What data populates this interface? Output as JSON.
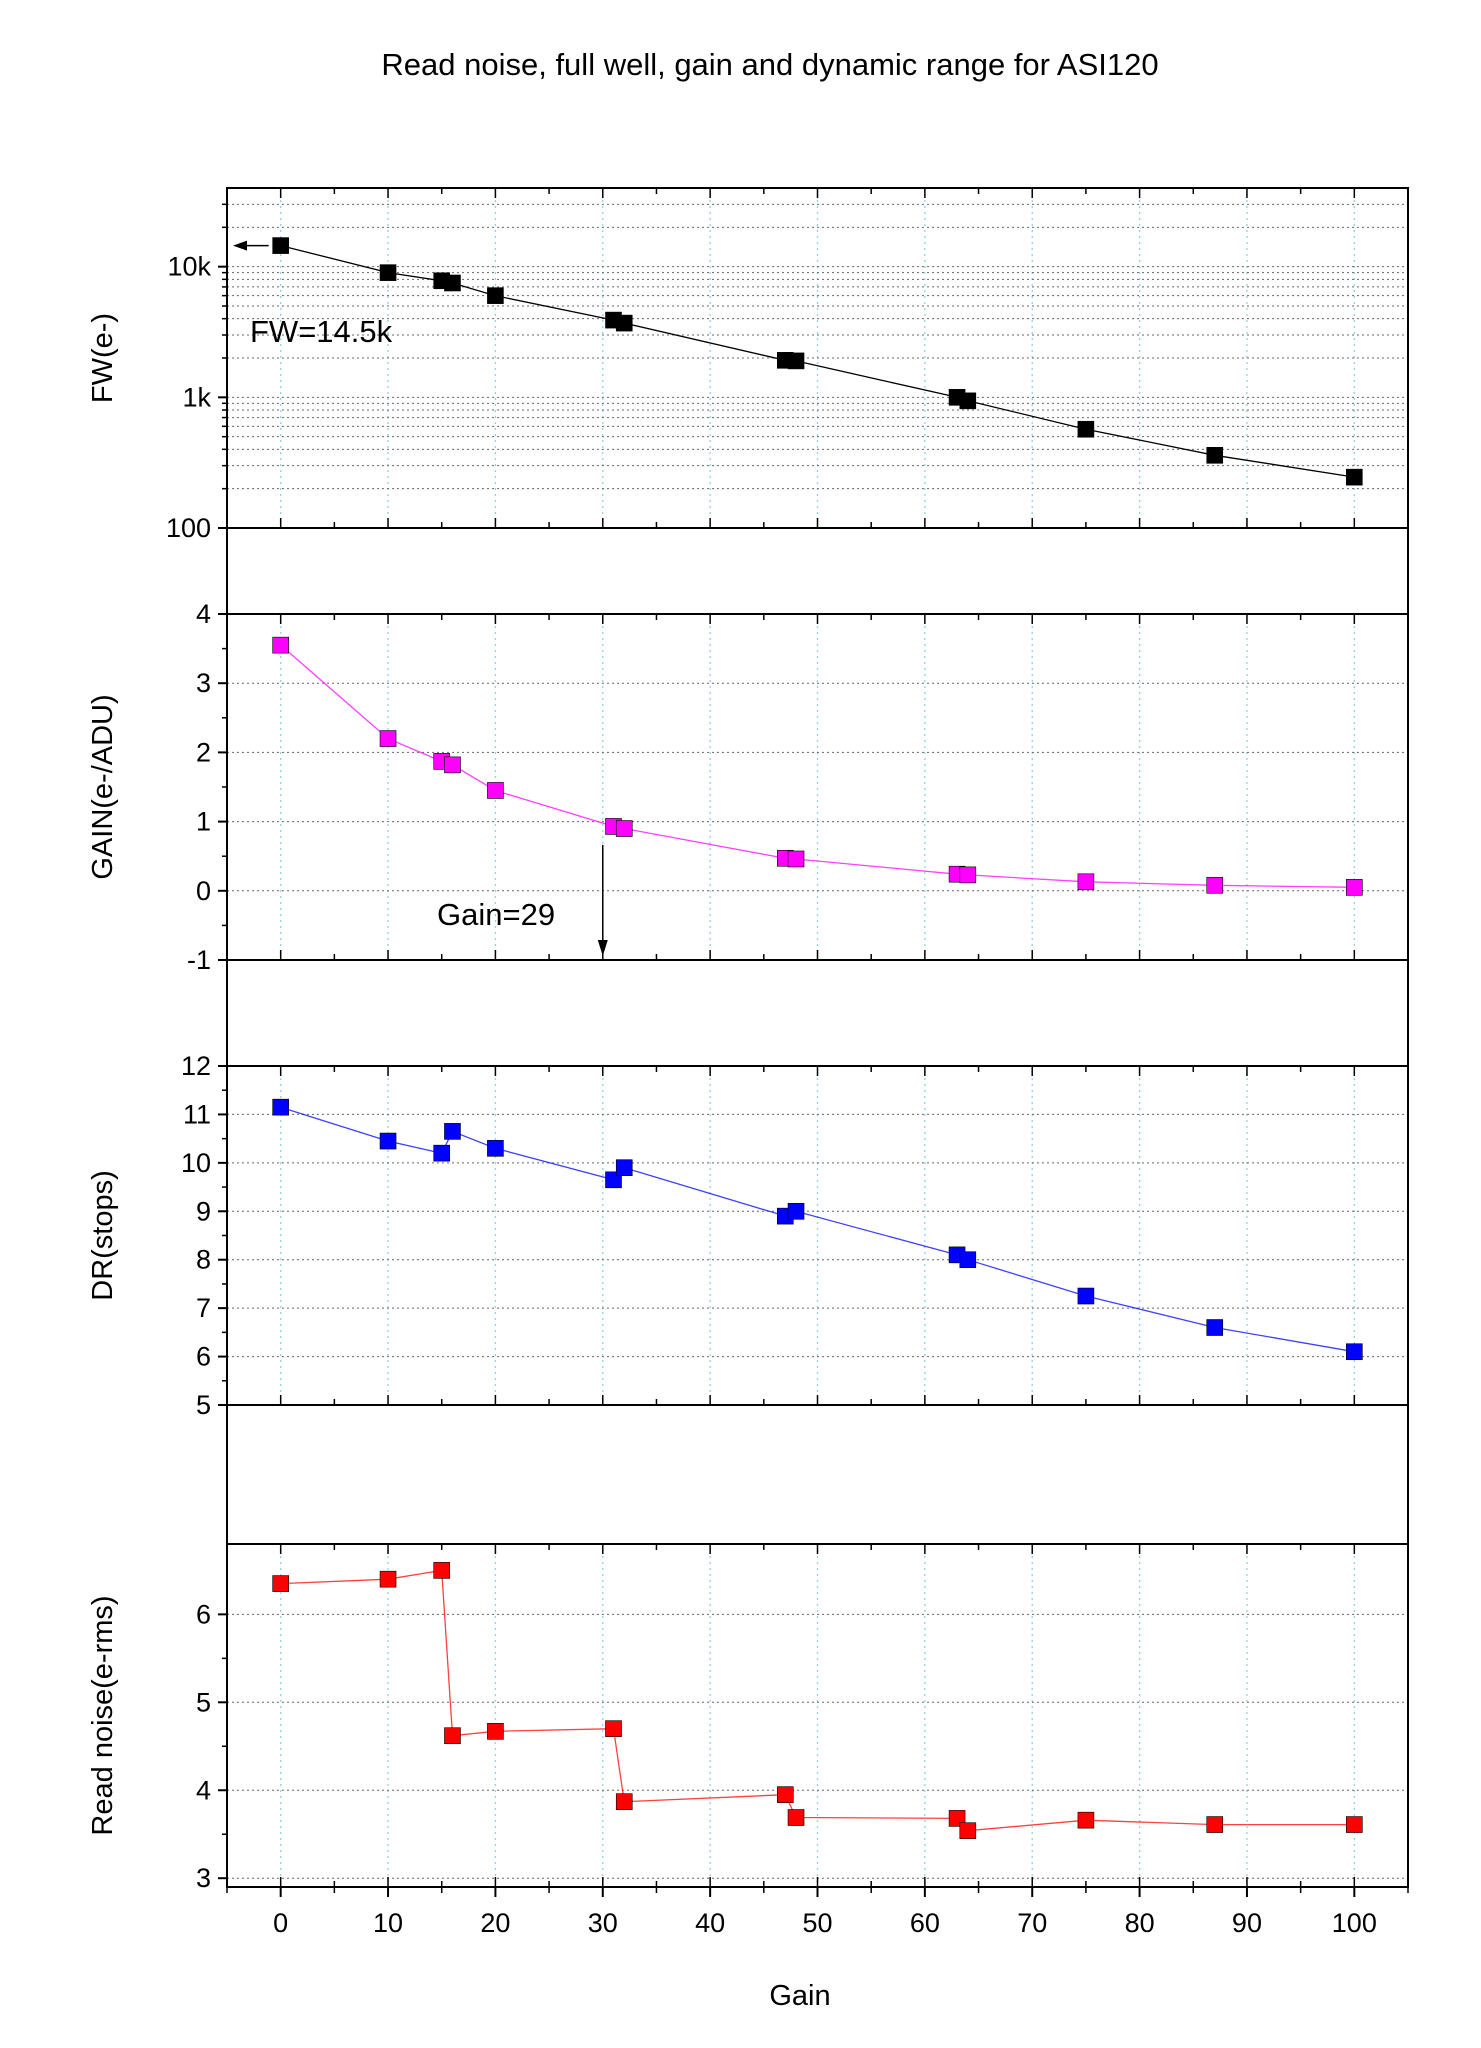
{
  "chart_data": {
    "type": "line",
    "title": "Read noise, full well, gain and dynamic range for ASI120",
    "xlabel": "Gain",
    "xlim": [
      -5,
      105
    ],
    "xticks": [
      "0",
      "10",
      "20",
      "30",
      "40",
      "50",
      "60",
      "70",
      "80",
      "90",
      "100"
    ],
    "x": [
      0,
      10,
      15,
      16,
      20,
      31,
      32,
      47,
      48,
      63,
      64,
      75,
      87,
      100
    ],
    "grid": true,
    "panels": [
      {
        "ylabel": "FW(e-)",
        "scale": "log",
        "ylim": [
          100,
          40000
        ],
        "yticks": [
          "100",
          "1k",
          "10k"
        ],
        "color": "#000000",
        "values": [
          14500,
          9000,
          7800,
          7500,
          6000,
          3900,
          3700,
          1920,
          1900,
          1000,
          940,
          570,
          360,
          245
        ],
        "annotation": "FW=14.5k"
      },
      {
        "ylabel": "GAIN(e-/ADU)",
        "scale": "linear",
        "ylim": [
          -1,
          4
        ],
        "yticks": [
          "-1",
          "0",
          "1",
          "2",
          "3",
          "4"
        ],
        "color": "#ff00ff",
        "values": [
          3.55,
          2.2,
          1.87,
          1.82,
          1.45,
          0.93,
          0.9,
          0.47,
          0.46,
          0.24,
          0.23,
          0.13,
          0.08,
          0.05
        ],
        "annotation": "Gain=29"
      },
      {
        "ylabel": "DR(stops)",
        "scale": "linear",
        "ylim": [
          5,
          12
        ],
        "yticks": [
          "5",
          "6",
          "7",
          "8",
          "9",
          "10",
          "11",
          "12"
        ],
        "color": "#0000ff",
        "values": [
          11.15,
          10.45,
          10.2,
          10.65,
          10.3,
          9.65,
          9.9,
          8.9,
          9.0,
          8.1,
          8.0,
          7.25,
          6.6,
          6.1
        ]
      },
      {
        "ylabel": "Read noise(e-rms)",
        "scale": "linear",
        "ylim": [
          2.9,
          6.8
        ],
        "yticks": [
          "3",
          "4",
          "5",
          "6"
        ],
        "color": "#ff0000",
        "values": [
          6.35,
          6.4,
          6.5,
          4.62,
          4.67,
          4.7,
          3.87,
          3.95,
          3.69,
          3.68,
          3.54,
          3.66,
          3.61,
          3.61
        ]
      }
    ]
  }
}
